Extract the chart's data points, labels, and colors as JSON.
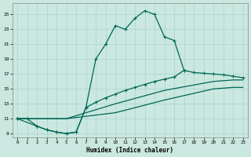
{
  "bg_color": "#cae8e0",
  "grid_color": "#a8d4cc",
  "line_color": "#006655",
  "xlabel": "Humidex (Indice chaleur)",
  "xlim": [
    -0.5,
    23.5
  ],
  "ylim": [
    8.5,
    26.5
  ],
  "xticks": [
    0,
    1,
    2,
    3,
    4,
    5,
    6,
    7,
    8,
    9,
    10,
    11,
    12,
    13,
    14,
    15,
    16,
    17,
    18,
    19,
    20,
    21,
    22,
    23
  ],
  "yticks": [
    9,
    11,
    13,
    15,
    17,
    19,
    21,
    23,
    25
  ],
  "line1_x": [
    0,
    1,
    2,
    3,
    4,
    5,
    6,
    7,
    8,
    9,
    10,
    11,
    12,
    13,
    14,
    15,
    16,
    17
  ],
  "line1_y": [
    11,
    11,
    10,
    9.5,
    9.2,
    9,
    9.2,
    12.5,
    19,
    21,
    23.5,
    23,
    24.5,
    25.5,
    25,
    22,
    21.5,
    17.5
  ],
  "line2_x": [
    0,
    2,
    3,
    4,
    5,
    6,
    7,
    8,
    9,
    10,
    11,
    12,
    13,
    14,
    15,
    16,
    17,
    18,
    19,
    20,
    21,
    22,
    23
  ],
  "line2_y": [
    11,
    10,
    9.5,
    9.2,
    9,
    9.2,
    12.5,
    13.2,
    13.8,
    14.3,
    14.8,
    15.2,
    15.6,
    16.0,
    16.3,
    16.6,
    17.5,
    17.2,
    17.1,
    17.0,
    16.9,
    16.7,
    16.5
  ],
  "line3_x": [
    0,
    5,
    10,
    15,
    20,
    21,
    22,
    23
  ],
  "line3_y": [
    11,
    11,
    13.0,
    14.8,
    16.0,
    16.1,
    16.2,
    16.2
  ],
  "line4_x": [
    0,
    5,
    10,
    15,
    20,
    21,
    22,
    23
  ],
  "line4_y": [
    11,
    11,
    11.8,
    13.5,
    15.0,
    15.1,
    15.2,
    15.2
  ],
  "line5_x": [
    0,
    1
  ],
  "line5_y": [
    11,
    11
  ]
}
